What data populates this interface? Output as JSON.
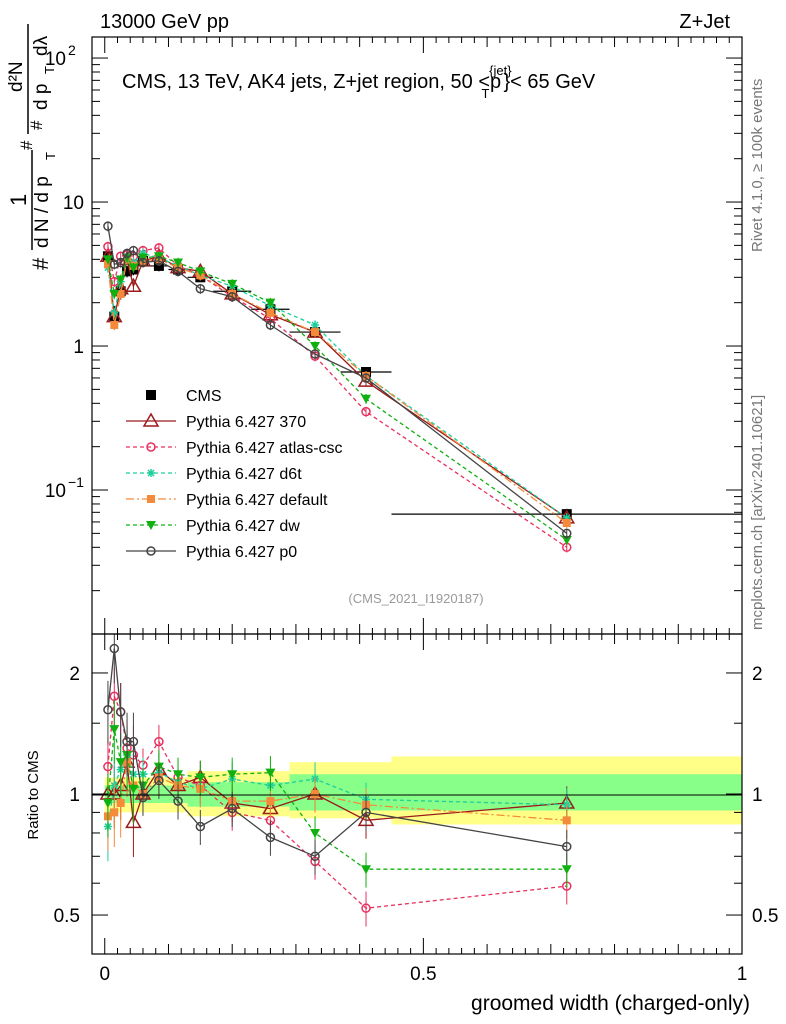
{
  "header": {
    "left": "13000 GeV pp",
    "right": "Z+Jet"
  },
  "side_text": {
    "rivet": "Rivet 4.1.0, ≥ 100k events",
    "mcplots": "mcplots.cern.ch [arXiv:2401.10621]"
  },
  "watermark": "(CMS_2021_I1920187)",
  "colors": {
    "cms": "#000000",
    "p370": "#9b1a1a",
    "atlas": "#e8305e",
    "d6t": "#1ccf9c",
    "default": "#f58a3a",
    "dw": "#10b010",
    "p0": "#444444",
    "band_outer": "#ffff88",
    "band_inner": "#88ff88"
  },
  "chart_data": [
    {
      "type": "line",
      "panel": "main",
      "title": "CMS, 13 TeV, AK4 jets, Z+jet region, 50 <",
      "title_p": "p",
      "title_sup": "{jet}",
      "title_sub": "T",
      "title_end": "}< 65 GeV",
      "ylabel": {
        "hash1": "#",
        "one": "1",
        "dN": "d N / d p",
        "T1": "T",
        "hash2": "#",
        "d2N": "d²N",
        "hash3": "#",
        "dp": "d p",
        "T2": "T",
        "dl": "dλ"
      },
      "yscale": "log",
      "ylim": [
        0.01,
        140
      ],
      "xlim": [
        -0.02,
        1.0
      ],
      "yticks": [
        {
          "value": 100,
          "base": "10",
          "exp": "2"
        },
        {
          "value": 10,
          "label": "10"
        },
        {
          "value": 1,
          "label": "1"
        },
        {
          "value": 0.1,
          "base": "10",
          "exp": "−1"
        }
      ],
      "x": [
        0.005,
        0.015,
        0.025,
        0.035,
        0.045,
        0.06,
        0.085,
        0.115,
        0.15,
        0.2,
        0.26,
        0.33,
        0.41,
        0.725
      ],
      "xerr_edges": [
        [
          0,
          0.01
        ],
        [
          0.01,
          0.02
        ],
        [
          0.02,
          0.03
        ],
        [
          0.03,
          0.04
        ],
        [
          0.04,
          0.05
        ],
        [
          0.05,
          0.07
        ],
        [
          0.07,
          0.1
        ],
        [
          0.1,
          0.13
        ],
        [
          0.13,
          0.17
        ],
        [
          0.17,
          0.23
        ],
        [
          0.23,
          0.29
        ],
        [
          0.29,
          0.37
        ],
        [
          0.37,
          0.45
        ],
        [
          0.45,
          1.0
        ]
      ],
      "series": [
        {
          "name": "CMS",
          "key": "cms",
          "values": [
            4.2,
            1.6,
            2.4,
            3.3,
            3.4,
            3.9,
            3.6,
            3.4,
            3.0,
            2.4,
            1.8,
            1.25,
            0.66,
            0.068
          ],
          "err": [
            0.5,
            0.3,
            0.3,
            0.3,
            0.3,
            0.3,
            0.3,
            0.25,
            0.2,
            0.15,
            0.12,
            0.1,
            0.05,
            0.006
          ]
        },
        {
          "name": "Pythia 6.427 370",
          "key": "p370",
          "values": [
            4.2,
            1.6,
            2.5,
            4.0,
            2.6,
            3.9,
            4.2,
            3.5,
            3.3,
            2.3,
            1.65,
            1.25,
            0.57,
            0.064
          ]
        },
        {
          "name": "Pythia 6.427 atlas-csc",
          "key": "atlas",
          "values": [
            4.9,
            2.8,
            4.2,
            4.3,
            4.2,
            4.6,
            4.8,
            3.6,
            3.1,
            2.2,
            1.55,
            0.85,
            0.35,
            0.04
          ]
        },
        {
          "name": "Pythia 6.427 d6t",
          "key": "d6t",
          "values": [
            3.5,
            1.7,
            2.8,
            4.1,
            3.8,
            4.4,
            4.1,
            3.6,
            3.1,
            2.6,
            1.9,
            1.4,
            0.62,
            0.064
          ]
        },
        {
          "name": "Pythia 6.427 default",
          "key": "default",
          "values": [
            3.7,
            1.4,
            2.3,
            4.0,
            3.6,
            3.9,
            4.0,
            3.5,
            3.1,
            2.3,
            1.7,
            1.25,
            0.62,
            0.059
          ]
        },
        {
          "name": "Pythia 6.427 dw",
          "key": "dw",
          "values": [
            4.0,
            2.3,
            2.9,
            4.1,
            3.5,
            4.1,
            4.2,
            3.8,
            3.3,
            2.7,
            2.0,
            1.0,
            0.43,
            0.045
          ]
        },
        {
          "name": "Pythia 6.427 p0",
          "key": "p0",
          "values": [
            6.8,
            3.7,
            3.8,
            4.4,
            4.6,
            3.8,
            3.9,
            3.3,
            2.5,
            2.2,
            1.4,
            0.88,
            0.6,
            0.05
          ]
        }
      ]
    },
    {
      "type": "line",
      "panel": "ratio",
      "ylabel": "Ratio to CMS",
      "xlabel": "groomed width (charged-only)",
      "yscale": "log",
      "ylim": [
        0.4,
        2.5
      ],
      "yticks": [
        {
          "value": 0.5,
          "label": "0.5"
        },
        {
          "value": 1,
          "label": "1"
        },
        {
          "value": 2,
          "label": "2"
        }
      ],
      "xticks": [
        {
          "value": 0,
          "label": "0"
        },
        {
          "value": 0.5,
          "label": "0.5"
        },
        {
          "value": 1,
          "label": "1"
        }
      ],
      "bands": [
        {
          "x0": 0.0,
          "x1": 0.13,
          "inner": [
            0.95,
            1.05
          ],
          "outer": [
            0.9,
            1.1
          ]
        },
        {
          "x0": 0.13,
          "x1": 0.29,
          "inner": [
            0.93,
            1.07
          ],
          "outer": [
            0.88,
            1.14
          ]
        },
        {
          "x0": 0.29,
          "x1": 0.45,
          "inner": [
            0.91,
            1.12
          ],
          "outer": [
            0.87,
            1.2
          ]
        },
        {
          "x0": 0.45,
          "x1": 1.0,
          "inner": [
            0.91,
            1.12
          ],
          "outer": [
            0.84,
            1.24
          ]
        }
      ],
      "series": [
        {
          "key": "p370",
          "values": [
            1.0,
            1.0,
            1.05,
            1.2,
            0.85,
            1.0,
            1.15,
            1.05,
            1.1,
            0.95,
            0.92,
            1.0,
            0.86,
            0.95
          ]
        },
        {
          "key": "atlas",
          "values": [
            1.17,
            1.75,
            1.6,
            1.3,
            1.25,
            1.18,
            1.35,
            1.1,
            1.05,
            0.9,
            0.86,
            0.68,
            0.52,
            0.59
          ]
        },
        {
          "key": "d6t",
          "values": [
            0.83,
            1.05,
            1.15,
            1.25,
            1.12,
            1.12,
            1.13,
            1.07,
            1.03,
            1.09,
            1.05,
            1.09,
            0.97,
            0.94
          ]
        },
        {
          "key": "default",
          "values": [
            0.88,
            0.9,
            0.95,
            1.2,
            1.05,
            1.0,
            1.1,
            1.05,
            1.03,
            0.96,
            0.96,
            1.0,
            0.94,
            0.86
          ]
        },
        {
          "key": "dw",
          "values": [
            0.95,
            1.45,
            1.2,
            1.25,
            1.03,
            1.05,
            1.17,
            1.12,
            1.1,
            1.12,
            1.13,
            0.8,
            0.65,
            0.65
          ]
        },
        {
          "key": "p0",
          "values": [
            1.62,
            2.3,
            1.6,
            1.35,
            1.35,
            0.98,
            1.08,
            0.96,
            0.83,
            0.92,
            0.78,
            0.7,
            0.9,
            0.74
          ]
        }
      ]
    }
  ]
}
